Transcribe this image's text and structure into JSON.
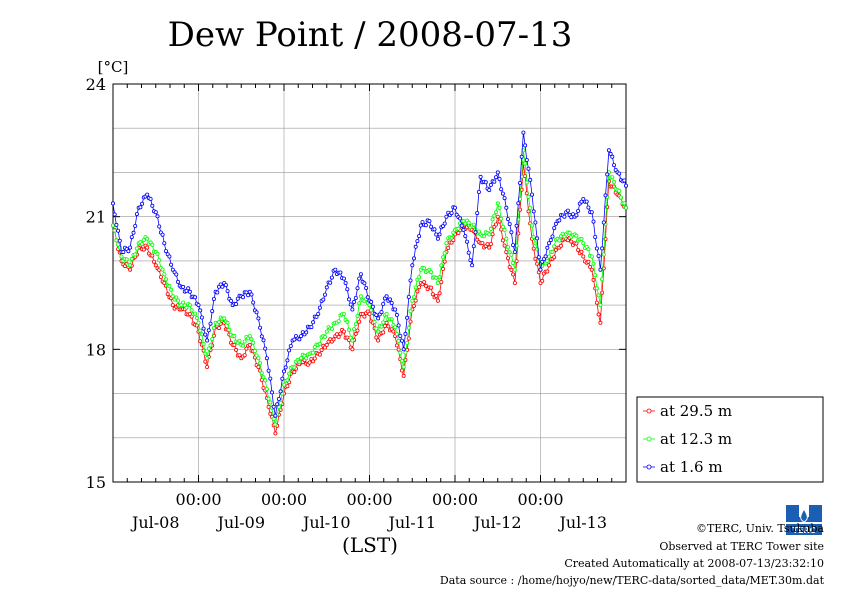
{
  "chart_data": {
    "type": "line",
    "title": "Dew Point / 2008-07-13",
    "ylabel": "[°C]",
    "xlabel": "(LST)",
    "ylim": [
      15,
      24
    ],
    "xlim": [
      0,
      6
    ],
    "yticks": [
      "15",
      "18",
      "21",
      "24"
    ],
    "ytick_values": [
      15,
      18,
      21,
      24
    ],
    "xticks": [
      {
        "x": 1,
        "top": "00:00",
        "bottom": "Jul-08"
      },
      {
        "x": 2,
        "top": "00:00",
        "bottom": "Jul-09"
      },
      {
        "x": 3,
        "top": "00:00",
        "bottom": "Jul-10"
      },
      {
        "x": 4,
        "top": "00:00",
        "bottom": "Jul-11"
      },
      {
        "x": 5,
        "top": "00:00",
        "bottom": "Jul-12"
      },
      {
        "x": 6,
        "top": "",
        "bottom": "Jul-13"
      }
    ],
    "grid": true,
    "legend_position": "right",
    "series": [
      {
        "name": "at 29.5 m",
        "color": "#ff0000",
        "points": [
          [
            0.0,
            20.8
          ],
          [
            0.1,
            20.0
          ],
          [
            0.2,
            19.8
          ],
          [
            0.3,
            20.3
          ],
          [
            0.4,
            20.3
          ],
          [
            0.5,
            19.9
          ],
          [
            0.6,
            19.5
          ],
          [
            0.7,
            19.0
          ],
          [
            0.8,
            18.9
          ],
          [
            0.9,
            18.8
          ],
          [
            1.0,
            18.4
          ],
          [
            1.1,
            17.6
          ],
          [
            1.2,
            18.5
          ],
          [
            1.3,
            18.6
          ],
          [
            1.4,
            18.1
          ],
          [
            1.5,
            17.8
          ],
          [
            1.6,
            18.1
          ],
          [
            1.7,
            17.6
          ],
          [
            1.8,
            16.9
          ],
          [
            1.9,
            16.1
          ],
          [
            2.0,
            17.0
          ],
          [
            2.1,
            17.5
          ],
          [
            2.2,
            17.7
          ],
          [
            2.3,
            17.7
          ],
          [
            2.4,
            17.9
          ],
          [
            2.5,
            18.1
          ],
          [
            2.6,
            18.3
          ],
          [
            2.7,
            18.4
          ],
          [
            2.8,
            18.0
          ],
          [
            2.9,
            18.8
          ],
          [
            3.0,
            18.8
          ],
          [
            3.1,
            18.2
          ],
          [
            3.2,
            18.6
          ],
          [
            3.3,
            18.3
          ],
          [
            3.4,
            17.4
          ],
          [
            3.5,
            18.9
          ],
          [
            3.6,
            19.5
          ],
          [
            3.7,
            19.4
          ],
          [
            3.8,
            19.1
          ],
          [
            3.9,
            20.2
          ],
          [
            4.0,
            20.6
          ],
          [
            4.1,
            20.8
          ],
          [
            4.2,
            20.7
          ],
          [
            4.3,
            20.4
          ],
          [
            4.4,
            20.3
          ],
          [
            4.5,
            21.0
          ],
          [
            4.6,
            20.2
          ],
          [
            4.7,
            19.5
          ],
          [
            4.8,
            22.2
          ],
          [
            4.9,
            20.5
          ],
          [
            5.0,
            19.5
          ],
          [
            5.1,
            19.9
          ],
          [
            5.2,
            20.3
          ],
          [
            5.3,
            20.5
          ],
          [
            5.4,
            20.4
          ],
          [
            5.5,
            20.1
          ],
          [
            5.6,
            19.8
          ],
          [
            5.7,
            18.6
          ],
          [
            5.8,
            21.8
          ],
          [
            5.9,
            21.5
          ],
          [
            6.0,
            21.2
          ]
        ]
      },
      {
        "name": "at 12.3 m",
        "color": "#00ff00",
        "points": [
          [
            0.0,
            20.8
          ],
          [
            0.1,
            20.1
          ],
          [
            0.2,
            19.9
          ],
          [
            0.3,
            20.4
          ],
          [
            0.4,
            20.5
          ],
          [
            0.5,
            20.2
          ],
          [
            0.6,
            19.7
          ],
          [
            0.7,
            19.2
          ],
          [
            0.8,
            19.0
          ],
          [
            0.9,
            19.0
          ],
          [
            1.0,
            18.6
          ],
          [
            1.1,
            17.8
          ],
          [
            1.2,
            18.6
          ],
          [
            1.3,
            18.7
          ],
          [
            1.4,
            18.3
          ],
          [
            1.5,
            18.1
          ],
          [
            1.6,
            18.3
          ],
          [
            1.7,
            17.8
          ],
          [
            1.8,
            17.1
          ],
          [
            1.9,
            16.3
          ],
          [
            2.0,
            17.2
          ],
          [
            2.1,
            17.6
          ],
          [
            2.2,
            17.8
          ],
          [
            2.3,
            17.9
          ],
          [
            2.4,
            18.1
          ],
          [
            2.5,
            18.4
          ],
          [
            2.6,
            18.6
          ],
          [
            2.7,
            18.8
          ],
          [
            2.8,
            18.2
          ],
          [
            2.9,
            19.2
          ],
          [
            3.0,
            19.0
          ],
          [
            3.1,
            18.4
          ],
          [
            3.2,
            18.8
          ],
          [
            3.3,
            18.5
          ],
          [
            3.4,
            17.6
          ],
          [
            3.5,
            19.1
          ],
          [
            3.6,
            19.8
          ],
          [
            3.7,
            19.8
          ],
          [
            3.8,
            19.5
          ],
          [
            3.9,
            20.4
          ],
          [
            4.0,
            20.7
          ],
          [
            4.1,
            20.9
          ],
          [
            4.2,
            20.8
          ],
          [
            4.3,
            20.6
          ],
          [
            4.4,
            20.6
          ],
          [
            4.5,
            21.3
          ],
          [
            4.6,
            20.5
          ],
          [
            4.7,
            19.8
          ],
          [
            4.8,
            22.5
          ],
          [
            4.9,
            20.8
          ],
          [
            5.0,
            19.8
          ],
          [
            5.1,
            20.1
          ],
          [
            5.2,
            20.5
          ],
          [
            5.3,
            20.6
          ],
          [
            5.4,
            20.6
          ],
          [
            5.5,
            20.4
          ],
          [
            5.6,
            20.1
          ],
          [
            5.7,
            19.0
          ],
          [
            5.8,
            22.0
          ],
          [
            5.9,
            21.6
          ],
          [
            6.0,
            21.2
          ]
        ]
      },
      {
        "name": "at 1.6 m",
        "color": "#0000ff",
        "points": [
          [
            0.0,
            21.3
          ],
          [
            0.1,
            20.2
          ],
          [
            0.2,
            20.3
          ],
          [
            0.3,
            21.2
          ],
          [
            0.4,
            21.5
          ],
          [
            0.5,
            21.1
          ],
          [
            0.6,
            20.4
          ],
          [
            0.7,
            19.8
          ],
          [
            0.8,
            19.4
          ],
          [
            0.9,
            19.3
          ],
          [
            1.0,
            19.0
          ],
          [
            1.1,
            18.2
          ],
          [
            1.2,
            19.3
          ],
          [
            1.3,
            19.5
          ],
          [
            1.4,
            19.0
          ],
          [
            1.5,
            19.2
          ],
          [
            1.6,
            19.3
          ],
          [
            1.7,
            18.7
          ],
          [
            1.8,
            17.8
          ],
          [
            1.9,
            16.5
          ],
          [
            2.0,
            17.5
          ],
          [
            2.1,
            18.2
          ],
          [
            2.2,
            18.3
          ],
          [
            2.3,
            18.5
          ],
          [
            2.4,
            18.8
          ],
          [
            2.5,
            19.4
          ],
          [
            2.6,
            19.8
          ],
          [
            2.7,
            19.6
          ],
          [
            2.8,
            18.9
          ],
          [
            2.9,
            19.7
          ],
          [
            3.0,
            19.1
          ],
          [
            3.1,
            18.7
          ],
          [
            3.2,
            19.2
          ],
          [
            3.3,
            18.9
          ],
          [
            3.4,
            18.0
          ],
          [
            3.5,
            19.9
          ],
          [
            3.6,
            20.8
          ],
          [
            3.7,
            20.9
          ],
          [
            3.8,
            20.5
          ],
          [
            3.9,
            21.0
          ],
          [
            4.0,
            21.2
          ],
          [
            4.1,
            20.7
          ],
          [
            4.2,
            19.9
          ],
          [
            4.3,
            21.9
          ],
          [
            4.4,
            21.6
          ],
          [
            4.5,
            22.0
          ],
          [
            4.6,
            21.2
          ],
          [
            4.7,
            20.2
          ],
          [
            4.8,
            22.9
          ],
          [
            4.9,
            21.5
          ],
          [
            5.0,
            19.8
          ],
          [
            5.1,
            20.4
          ],
          [
            5.2,
            20.9
          ],
          [
            5.3,
            21.1
          ],
          [
            5.4,
            21.0
          ],
          [
            5.5,
            21.4
          ],
          [
            5.6,
            21.1
          ],
          [
            5.7,
            19.8
          ],
          [
            5.8,
            22.5
          ],
          [
            5.9,
            22.0
          ],
          [
            6.0,
            21.7
          ]
        ]
      }
    ]
  },
  "credits": {
    "copyright": "©TERC, Univ. Tsukuba",
    "observed": "Observed at TERC Tower site",
    "created": "Created Automatically at 2008-07-13/23:32:10",
    "source": "Data source : /home/hojyo/new/TERC-data/sorted_data/MET.30m.dat"
  },
  "logo": {
    "icon": "terc-logo-icon",
    "text": "TERC",
    "color": "#1a5fb4"
  }
}
